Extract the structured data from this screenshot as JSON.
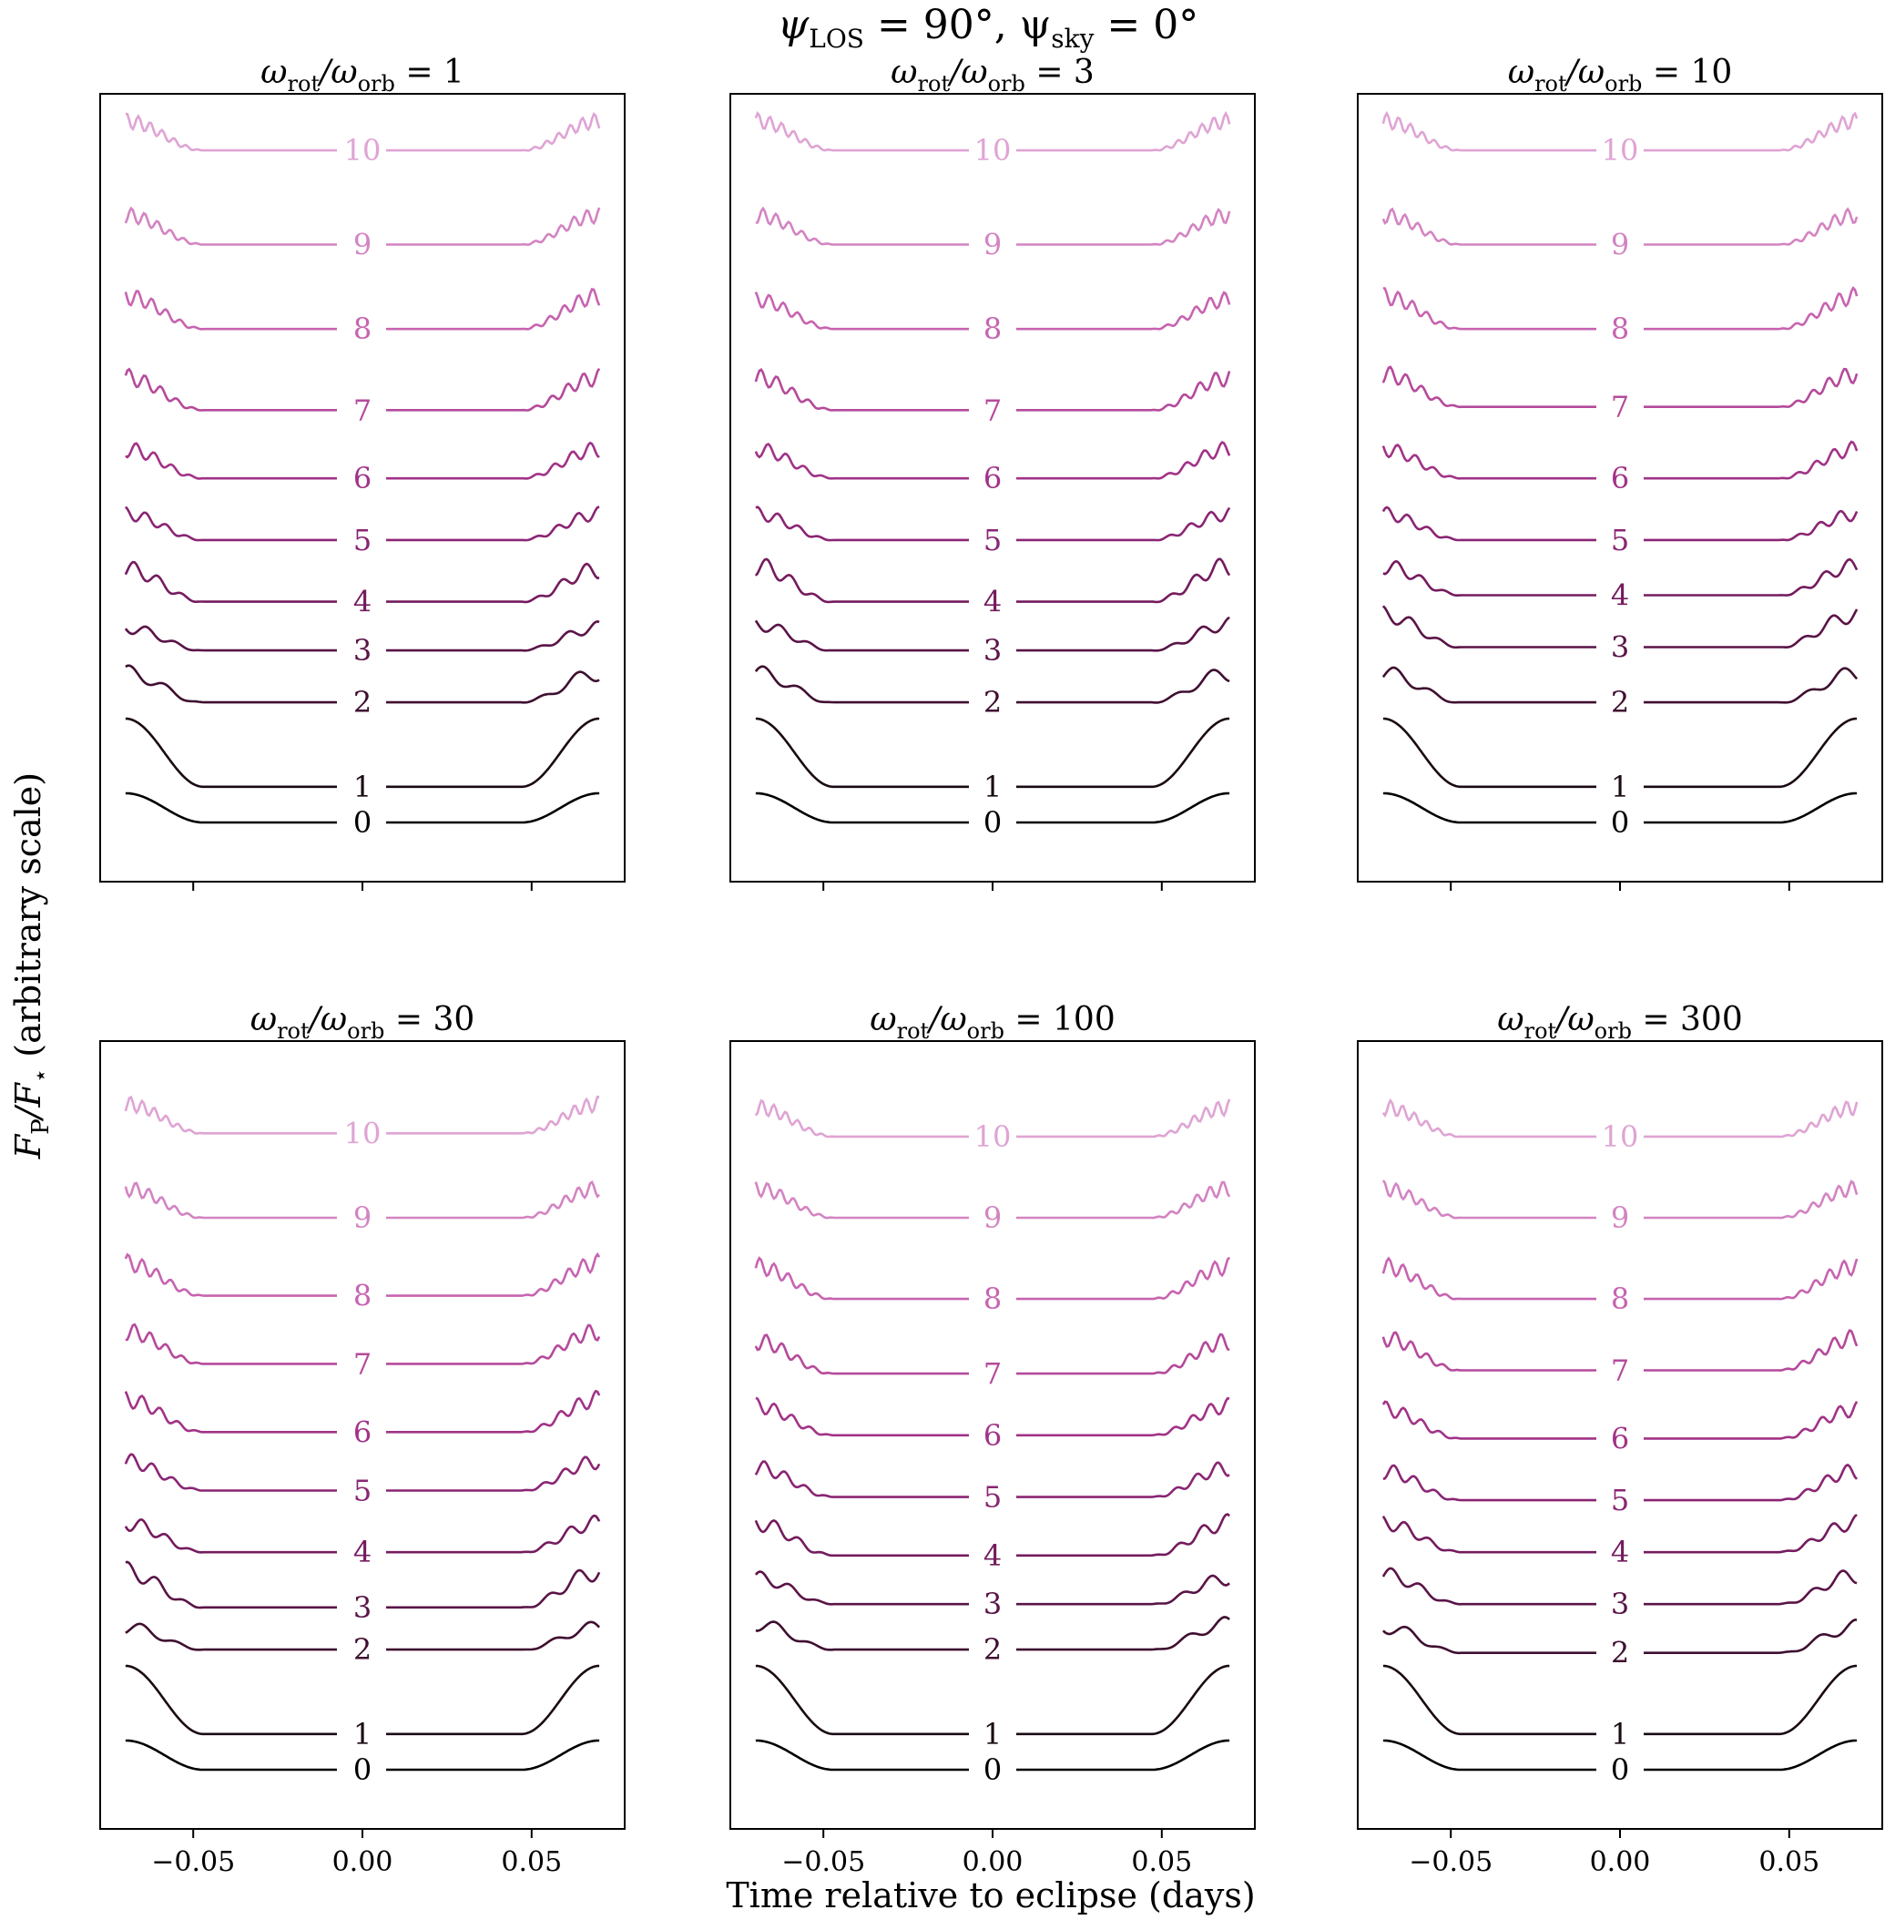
{
  "figure": {
    "suptitle": {
      "prefix": "ψ",
      "sub1": "LOS",
      "mid": " = 90°, ψ",
      "sub2": "sky",
      "suffix": " = 0°"
    },
    "xlabel": "Time relative to eclipse (days)",
    "ylabel": {
      "main1": "F",
      "sub1": "P",
      "slash": "/F",
      "sub2": "⋆",
      "rest": " (arbitrary scale)"
    }
  },
  "chart_data": {
    "type": "line",
    "x_range": [
      -0.07,
      0.07
    ],
    "xlim": [
      -0.0775,
      0.0775
    ],
    "xticks": [
      -0.05,
      0.0,
      0.05
    ],
    "xtick_labels": [
      "−0.05",
      "0.00",
      "0.05"
    ],
    "eclipse_ingress_egress": [
      -0.047,
      0.047
    ],
    "degree_labels": [
      "0",
      "1",
      "2",
      "3",
      "4",
      "5",
      "6",
      "7",
      "8",
      "9",
      "10"
    ],
    "series_colors": [
      "#000000",
      "#1a0a14",
      "#3f0f30",
      "#5a1447",
      "#741b5e",
      "#8a2573",
      "#a13387",
      "#b54a9b",
      "#c764b0",
      "#d384c2",
      "#dfa4d4"
    ],
    "panels": [
      {
        "title_prefix": "ω",
        "title_sub1": "rot",
        "title_mid": "/ω",
        "title_sub2": "orb",
        "title_suffix": " = 1",
        "ratio": 1,
        "series": [
          {
            "degree": 0,
            "baseline": 0.0,
            "amplitude": 0.45
          },
          {
            "degree": 1,
            "baseline": 0.55,
            "amplitude": 1.05
          },
          {
            "degree": 2,
            "baseline": 1.85,
            "amplitude": 0.45
          },
          {
            "degree": 3,
            "baseline": 2.65,
            "amplitude": 0.35
          },
          {
            "degree": 4,
            "baseline": 3.4,
            "amplitude": 0.5
          },
          {
            "degree": 5,
            "baseline": 4.35,
            "amplitude": 0.4
          },
          {
            "degree": 6,
            "baseline": 5.3,
            "amplitude": 0.45
          },
          {
            "degree": 7,
            "baseline": 6.35,
            "amplitude": 0.5
          },
          {
            "degree": 8,
            "baseline": 7.6,
            "amplitude": 0.5
          },
          {
            "degree": 9,
            "baseline": 8.9,
            "amplitude": 0.45
          },
          {
            "degree": 10,
            "baseline": 10.35,
            "amplitude": 0.45
          }
        ]
      },
      {
        "title_prefix": "ω",
        "title_sub1": "rot",
        "title_mid": "/ω",
        "title_sub2": "orb",
        "title_suffix": " = 3",
        "ratio": 3,
        "series": [
          {
            "degree": 0,
            "baseline": 0.0,
            "amplitude": 0.45
          },
          {
            "degree": 1,
            "baseline": 0.55,
            "amplitude": 1.05
          },
          {
            "degree": 2,
            "baseline": 1.85,
            "amplitude": 0.45
          },
          {
            "degree": 3,
            "baseline": 2.65,
            "amplitude": 0.4
          },
          {
            "degree": 4,
            "baseline": 3.4,
            "amplitude": 0.55
          },
          {
            "degree": 5,
            "baseline": 4.35,
            "amplitude": 0.4
          },
          {
            "degree": 6,
            "baseline": 5.3,
            "amplitude": 0.45
          },
          {
            "degree": 7,
            "baseline": 6.35,
            "amplitude": 0.5
          },
          {
            "degree": 8,
            "baseline": 7.6,
            "amplitude": 0.45
          },
          {
            "degree": 9,
            "baseline": 8.9,
            "amplitude": 0.45
          },
          {
            "degree": 10,
            "baseline": 10.35,
            "amplitude": 0.45
          }
        ]
      },
      {
        "title_prefix": "ω",
        "title_sub1": "rot",
        "title_mid": "/ω",
        "title_sub2": "orb",
        "title_suffix": " = 10",
        "ratio": 10,
        "series": [
          {
            "degree": 0,
            "baseline": 0.0,
            "amplitude": 0.45
          },
          {
            "degree": 1,
            "baseline": 0.55,
            "amplitude": 1.05
          },
          {
            "degree": 2,
            "baseline": 1.85,
            "amplitude": 0.45
          },
          {
            "degree": 3,
            "baseline": 2.7,
            "amplitude": 0.5
          },
          {
            "degree": 4,
            "baseline": 3.5,
            "amplitude": 0.45
          },
          {
            "degree": 5,
            "baseline": 4.35,
            "amplitude": 0.4
          },
          {
            "degree": 6,
            "baseline": 5.3,
            "amplitude": 0.45
          },
          {
            "degree": 7,
            "baseline": 6.4,
            "amplitude": 0.5
          },
          {
            "degree": 8,
            "baseline": 7.6,
            "amplitude": 0.5
          },
          {
            "degree": 9,
            "baseline": 8.9,
            "amplitude": 0.45
          },
          {
            "degree": 10,
            "baseline": 10.35,
            "amplitude": 0.45
          }
        ]
      },
      {
        "title_prefix": "ω",
        "title_sub1": "rot",
        "title_mid": "/ω",
        "title_sub2": "orb",
        "title_suffix": " = 30",
        "ratio": 30,
        "series": [
          {
            "degree": 0,
            "baseline": 0.0,
            "amplitude": 0.45
          },
          {
            "degree": 1,
            "baseline": 0.55,
            "amplitude": 1.05
          },
          {
            "degree": 2,
            "baseline": 1.85,
            "amplitude": 0.35
          },
          {
            "degree": 3,
            "baseline": 2.5,
            "amplitude": 0.55
          },
          {
            "degree": 4,
            "baseline": 3.35,
            "amplitude": 0.45
          },
          {
            "degree": 5,
            "baseline": 4.3,
            "amplitude": 0.45
          },
          {
            "degree": 6,
            "baseline": 5.2,
            "amplitude": 0.5
          },
          {
            "degree": 7,
            "baseline": 6.25,
            "amplitude": 0.5
          },
          {
            "degree": 8,
            "baseline": 7.3,
            "amplitude": 0.5
          },
          {
            "degree": 9,
            "baseline": 8.5,
            "amplitude": 0.45
          },
          {
            "degree": 10,
            "baseline": 9.8,
            "amplitude": 0.45
          }
        ]
      },
      {
        "title_prefix": "ω",
        "title_sub1": "rot",
        "title_mid": "/ω",
        "title_sub2": "orb",
        "title_suffix": " = 100",
        "ratio": 100,
        "series": [
          {
            "degree": 0,
            "baseline": 0.0,
            "amplitude": 0.45
          },
          {
            "degree": 1,
            "baseline": 0.55,
            "amplitude": 1.05
          },
          {
            "degree": 2,
            "baseline": 1.85,
            "amplitude": 0.4
          },
          {
            "degree": 3,
            "baseline": 2.55,
            "amplitude": 0.4
          },
          {
            "degree": 4,
            "baseline": 3.3,
            "amplitude": 0.5
          },
          {
            "degree": 5,
            "baseline": 4.2,
            "amplitude": 0.45
          },
          {
            "degree": 6,
            "baseline": 5.15,
            "amplitude": 0.45
          },
          {
            "degree": 7,
            "baseline": 6.1,
            "amplitude": 0.5
          },
          {
            "degree": 8,
            "baseline": 7.25,
            "amplitude": 0.5
          },
          {
            "degree": 9,
            "baseline": 8.5,
            "amplitude": 0.45
          },
          {
            "degree": 10,
            "baseline": 9.75,
            "amplitude": 0.45
          }
        ]
      },
      {
        "title_prefix": "ω",
        "title_sub1": "rot",
        "title_mid": "/ω",
        "title_sub2": "orb",
        "title_suffix": " = 300",
        "ratio": 300,
        "series": [
          {
            "degree": 0,
            "baseline": 0.0,
            "amplitude": 0.45
          },
          {
            "degree": 1,
            "baseline": 0.55,
            "amplitude": 1.05
          },
          {
            "degree": 2,
            "baseline": 1.8,
            "amplitude": 0.4
          },
          {
            "degree": 3,
            "baseline": 2.55,
            "amplitude": 0.45
          },
          {
            "degree": 4,
            "baseline": 3.35,
            "amplitude": 0.45
          },
          {
            "degree": 5,
            "baseline": 4.15,
            "amplitude": 0.45
          },
          {
            "degree": 6,
            "baseline": 5.1,
            "amplitude": 0.45
          },
          {
            "degree": 7,
            "baseline": 6.15,
            "amplitude": 0.5
          },
          {
            "degree": 8,
            "baseline": 7.25,
            "amplitude": 0.5
          },
          {
            "degree": 9,
            "baseline": 8.5,
            "amplitude": 0.45
          },
          {
            "degree": 10,
            "baseline": 9.75,
            "amplitude": 0.45
          }
        ]
      }
    ]
  }
}
